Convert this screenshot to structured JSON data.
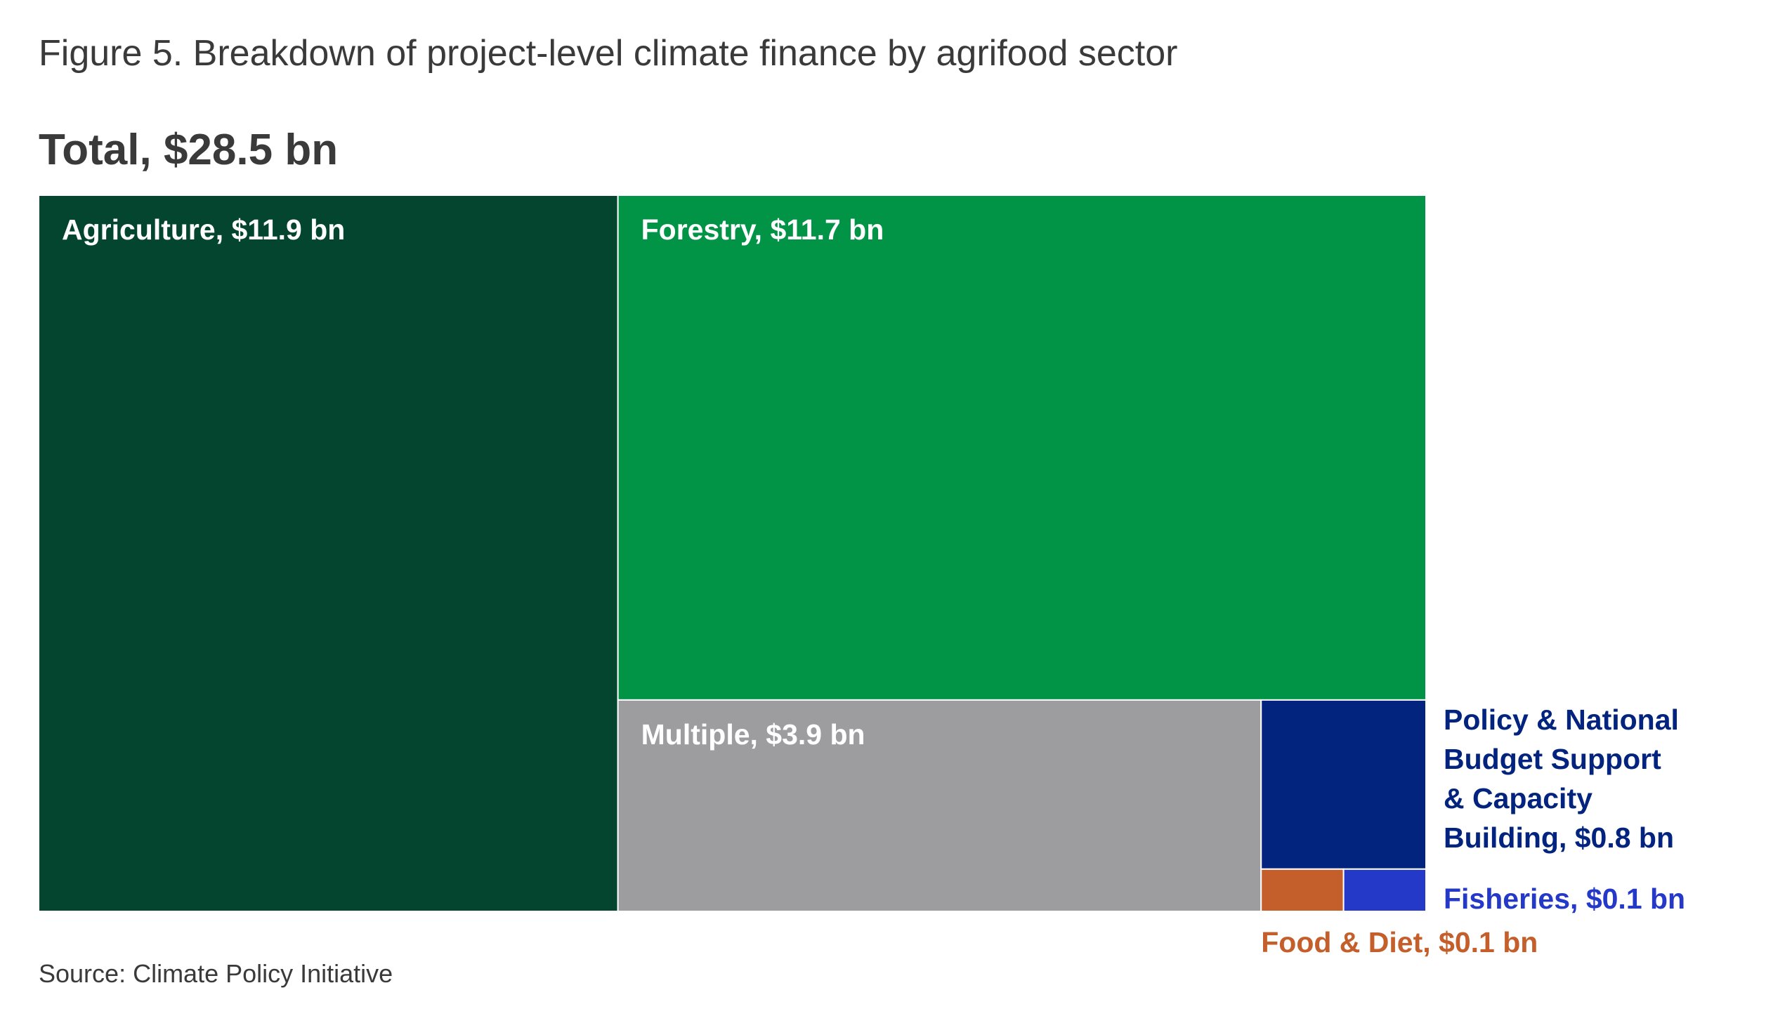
{
  "figure_title": "Figure 5. Breakdown of project-level climate finance by agrifood sector",
  "total_label": "Total, $28.5 bn",
  "source": "Source: Climate Policy Initiative",
  "chart_data": {
    "type": "treemap",
    "total": 28.5,
    "unit": "$ bn",
    "items": [
      {
        "name": "Agriculture",
        "value": 11.9,
        "label": "Agriculture, $11.9 bn",
        "color": "#03452f",
        "label_color": "#ffffff"
      },
      {
        "name": "Forestry",
        "value": 11.7,
        "label": "Forestry, $11.7 bn",
        "color": "#019447",
        "label_color": "#ffffff"
      },
      {
        "name": "Multiple",
        "value": 3.9,
        "label": "Multiple, $3.9 bn",
        "color": "#9d9c9f",
        "label_color": "#ffffff"
      },
      {
        "name": "Policy & National Budget Support & Capacity Building",
        "value": 0.8,
        "label_lines": [
          "Policy & National",
          "Budget Support",
          "& Capacity",
          "Building, $0.8 bn"
        ],
        "color": "#02237e",
        "label_color": "#02237e"
      },
      {
        "name": "Fisheries",
        "value": 0.1,
        "label": "Fisheries, $0.1 bn",
        "color": "#2539c8",
        "label_color": "#2539c8"
      },
      {
        "name": "Food & Diet",
        "value": 0.1,
        "label": "Food & Diet, $0.1 bn",
        "color": "#c45e2b",
        "label_color": "#c45e2b"
      }
    ]
  }
}
